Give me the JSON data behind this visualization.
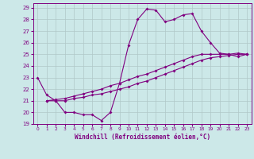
{
  "xlabel": "Windchill (Refroidissement éolien,°C)",
  "bg_color": "#cce8e8",
  "line_color": "#800080",
  "grid_color": "#b0c8c8",
  "xlim": [
    -0.5,
    23.5
  ],
  "ylim": [
    19,
    29.4
  ],
  "yticks": [
    19,
    20,
    21,
    22,
    23,
    24,
    25,
    26,
    27,
    28,
    29
  ],
  "xticks": [
    0,
    1,
    2,
    3,
    4,
    5,
    6,
    7,
    8,
    9,
    10,
    11,
    12,
    13,
    14,
    15,
    16,
    17,
    18,
    19,
    20,
    21,
    22,
    23
  ],
  "line1_x": [
    0,
    1,
    2,
    3,
    4,
    5,
    6,
    7,
    8,
    9,
    10,
    11,
    12,
    13,
    14,
    15,
    16,
    17,
    18,
    19,
    20,
    21,
    22,
    23
  ],
  "line1_y": [
    23.0,
    21.5,
    21.0,
    20.0,
    20.0,
    19.8,
    19.8,
    19.3,
    20.0,
    22.5,
    25.8,
    28.0,
    28.9,
    28.8,
    27.8,
    28.0,
    28.4,
    28.5,
    27.0,
    26.0,
    25.1,
    25.0,
    24.8,
    25.0
  ],
  "line2_x": [
    1,
    2,
    3,
    4,
    5,
    6,
    7,
    8,
    9,
    10,
    11,
    12,
    13,
    14,
    15,
    16,
    17,
    18,
    19,
    20,
    21,
    22,
    23
  ],
  "line2_y": [
    21.0,
    21.0,
    21.0,
    21.2,
    21.3,
    21.5,
    21.6,
    21.8,
    22.0,
    22.2,
    22.5,
    22.7,
    23.0,
    23.3,
    23.6,
    23.9,
    24.2,
    24.5,
    24.7,
    24.8,
    24.9,
    25.0,
    25.0
  ],
  "line3_x": [
    1,
    2,
    3,
    4,
    5,
    6,
    7,
    8,
    9,
    10,
    11,
    12,
    13,
    14,
    15,
    16,
    17,
    18,
    19,
    20,
    21,
    22,
    23
  ],
  "line3_y": [
    21.0,
    21.1,
    21.2,
    21.4,
    21.6,
    21.8,
    22.0,
    22.3,
    22.5,
    22.8,
    23.1,
    23.3,
    23.6,
    23.9,
    24.2,
    24.5,
    24.8,
    25.0,
    25.0,
    25.0,
    25.0,
    25.1,
    25.0
  ]
}
